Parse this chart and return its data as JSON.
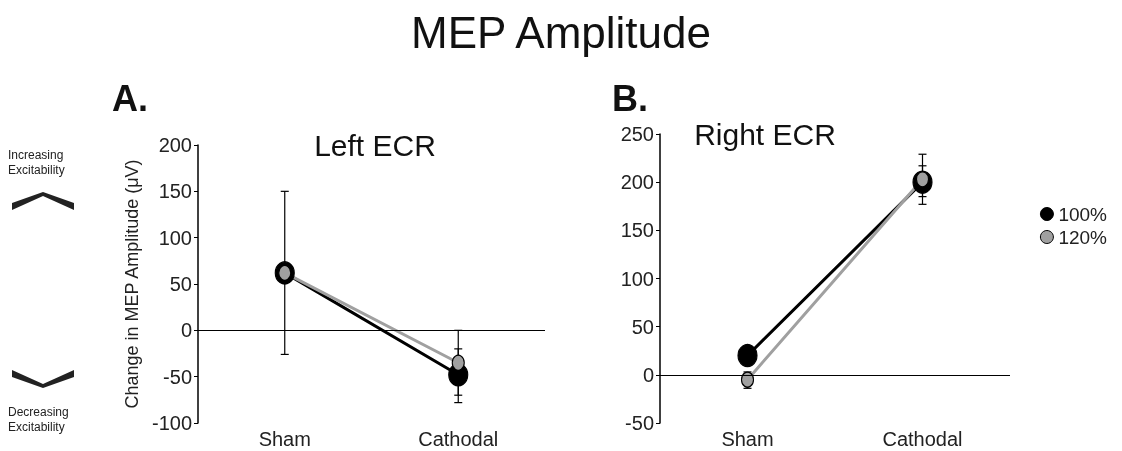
{
  "chart_data": [
    {
      "type": "line",
      "title": "Left ECR",
      "ylabel": "Change in MEP Amplitude (μV)",
      "categories": [
        "Sham",
        "Cathodal"
      ],
      "annotations": [
        "MEP Amplitude",
        "A.",
        "Increasing Excitability",
        "Decreasing Excitability"
      ],
      "series": [
        {
          "color": "#000000",
          "values": [
            62,
            -48
          ],
          "errors": [
            null,
            [
              -78,
              -20
            ]
          ]
        },
        {
          "color": "#a0a0a0",
          "values": [
            62,
            -35
          ],
          "errors": [
            [
              -26,
              150
            ],
            [
              -70,
              0
            ]
          ]
        }
      ],
      "ylim": [
        -100,
        200
      ],
      "yticks": [
        -100,
        -50,
        0,
        50,
        100,
        150,
        200
      ],
      "ref_lines": [
        {
          "axis": "y",
          "value": 0
        }
      ],
      "grid": false,
      "legend": false,
      "marker": "circle",
      "line_style": "solid"
    },
    {
      "type": "line",
      "title": "Right ECR",
      "categories": [
        "Sham",
        "Cathodal"
      ],
      "annotations": [
        "B."
      ],
      "series": [
        {
          "name": "100%",
          "color": "#000000",
          "values": [
            20,
            200
          ],
          "errors": [
            null,
            [
              185,
              217
            ]
          ]
        },
        {
          "name": "120%",
          "color": "#a0a0a0",
          "values": [
            -5,
            203
          ],
          "errors": [
            [
              -14,
              3
            ],
            [
              177,
              229
            ]
          ]
        }
      ],
      "ylim": [
        -50,
        250
      ],
      "yticks": [
        -50,
        0,
        50,
        100,
        150,
        200,
        250
      ],
      "ref_lines": [
        {
          "axis": "y",
          "value": 0
        }
      ],
      "grid": false,
      "legend": "right",
      "marker": "circle",
      "line_style": "solid"
    }
  ]
}
